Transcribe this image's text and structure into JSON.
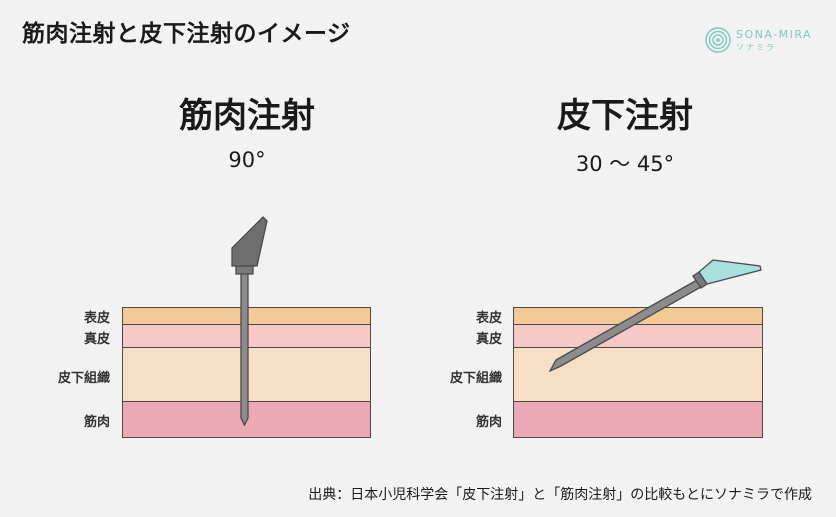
{
  "title": "筋肉注射と皮下注射のイメージ",
  "logo": {
    "text": "SONA-MIRA",
    "sub": "ソナミラ"
  },
  "panels": [
    {
      "title": "筋肉注射",
      "angle": "90°",
      "labels": [
        "表皮",
        "真皮",
        "皮下組織",
        "筋肉"
      ]
    },
    {
      "title": "皮下注射",
      "angle": "30 〜 45°",
      "labels": [
        "表皮",
        "真皮",
        "皮下組織",
        "筋肉"
      ]
    }
  ],
  "colors": {
    "epidermis": "#f3c998",
    "dermis": "#f5c9c6",
    "subcutis": "#f7dfc6",
    "muscle": "#eba9b5",
    "needle_gray": "#8c8c8c",
    "hub_gray": "#6e6e6e",
    "hub_blue": "#a8e0e0"
  },
  "source": "出典：日本小児科学会「皮下注射」と「筋肉注射」の比較もとにソナミラで作成"
}
